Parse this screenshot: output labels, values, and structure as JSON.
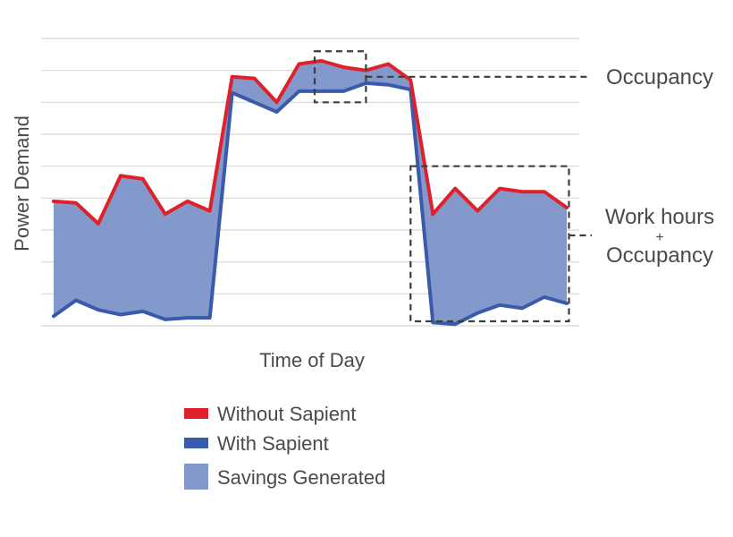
{
  "chart_data": {
    "type": "area",
    "title": "",
    "xlabel": "Time of Day",
    "ylabel": "Power Demand",
    "grid": true,
    "x": [
      0,
      1,
      2,
      3,
      4,
      5,
      6,
      7,
      8,
      9,
      10,
      11,
      12,
      13,
      14,
      15,
      16,
      17,
      18,
      19,
      20,
      21,
      22,
      23,
      24
    ],
    "ylim": [
      0,
      9
    ],
    "series": [
      {
        "name": "Without Sapient",
        "color": "#e0202a",
        "values": [
          3.9,
          3.85,
          3.2,
          4.7,
          4.6,
          3.5,
          3.9,
          3.6,
          7.8,
          7.75,
          7.0,
          8.2,
          8.3,
          8.1,
          8.0,
          8.2,
          7.7,
          3.5,
          4.3,
          3.6,
          4.3,
          4.2,
          4.2,
          3.7,
          null
        ]
      },
      {
        "name": "With Sapient",
        "color": "#3a5aab",
        "values": [
          0.3,
          0.8,
          0.5,
          0.35,
          0.45,
          0.2,
          0.25,
          0.25,
          7.3,
          7.0,
          6.7,
          7.35,
          7.35,
          7.35,
          7.6,
          7.55,
          7.4,
          0.1,
          0.05,
          0.4,
          0.65,
          0.55,
          0.9,
          0.7,
          null
        ]
      }
    ],
    "fill": {
      "name": "Savings Generated",
      "color": "#8499cb"
    },
    "annotations": [
      {
        "text": "Occupancy",
        "x_range": [
          11.7,
          14.0
        ],
        "y_range": [
          7.0,
          8.6
        ]
      },
      {
        "text_lines": [
          "Work hours",
          "+",
          "Occupancy"
        ],
        "x_range": [
          16.0,
          23.1
        ],
        "y_range": [
          0.0,
          5.0
        ]
      }
    ],
    "legend": {
      "placement": "bottom",
      "entries": [
        {
          "label": "Without Sapient",
          "color": "#e0202a",
          "kind": "line"
        },
        {
          "label": "With Sapient",
          "color": "#3a5aab",
          "kind": "line"
        },
        {
          "label": "Savings Generated",
          "color": "#8499cb",
          "kind": "area"
        }
      ]
    }
  }
}
